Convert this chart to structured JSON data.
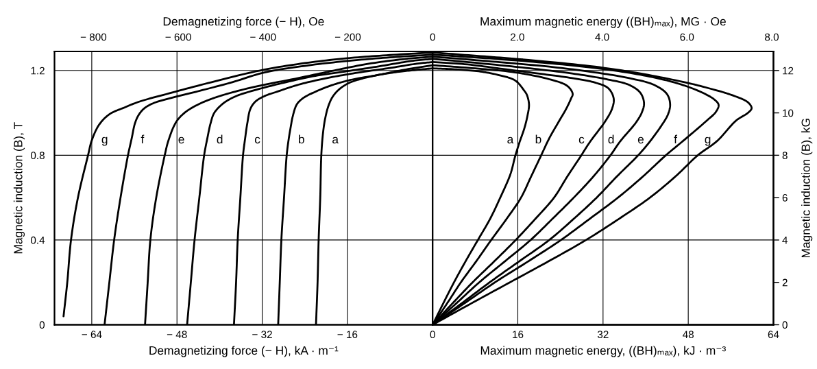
{
  "chart_data": [
    {
      "type": "line",
      "xlabel": "Demagnetizing force (− H), kA · m⁻¹",
      "x2label": "Demagnetizing force (− H), Oe",
      "ylabel": "Magnetic induction (B), T",
      "xlim": [
        -71,
        0
      ],
      "xticks": [
        {
          "value": -64,
          "label": "− 64"
        },
        {
          "value": -48,
          "label": "− 48"
        },
        {
          "value": -32,
          "label": "− 32"
        },
        {
          "value": -16,
          "label": "− 16"
        }
      ],
      "x2lim": [
        -892,
        0
      ],
      "x2ticks": [
        {
          "value": -800,
          "label": "− 800"
        },
        {
          "value": -600,
          "label": "− 600"
        },
        {
          "value": -400,
          "label": "− 400"
        },
        {
          "value": -200,
          "label": "− 200"
        }
      ],
      "ylim": [
        0,
        1.29
      ],
      "yticks": [
        0,
        0.4,
        0.8,
        1.2
      ],
      "grid": true,
      "series": [
        {
          "name": "a",
          "color": "#000000",
          "x": [
            -21.9,
            -21.6,
            -21.4,
            -21.1,
            -20.9,
            -20.6,
            -20.2,
            -19.6,
            -18.8,
            -17.6,
            -15.8,
            -13.5,
            -10,
            -6,
            -3,
            0
          ],
          "values": [
            0,
            0.2,
            0.4,
            0.6,
            0.8,
            0.9,
            0.97,
            1.03,
            1.075,
            1.11,
            1.14,
            1.16,
            1.18,
            1.195,
            1.203,
            1.21
          ]
        },
        {
          "name": "b",
          "color": "#000000",
          "x": [
            -29.0,
            -28.7,
            -28.4,
            -27.9,
            -27.4,
            -27.0,
            -26.6,
            -26.3,
            -25.5,
            -24.3,
            -22.0,
            -19.0,
            -15.5,
            -10,
            -5,
            0
          ],
          "values": [
            0,
            0.2,
            0.4,
            0.6,
            0.8,
            0.88,
            0.94,
            0.98,
            1.04,
            1.07,
            1.1,
            1.13,
            1.155,
            1.18,
            1.205,
            1.225
          ]
        },
        {
          "name": "c",
          "color": "#000000",
          "x": [
            -37.3,
            -36.9,
            -36.6,
            -36.1,
            -35.6,
            -35.2,
            -34.8,
            -34.2,
            -33.2,
            -31.5,
            -29.2,
            -25.2,
            -19.7,
            -14,
            -8,
            -3,
            0
          ],
          "values": [
            0,
            0.2,
            0.4,
            0.6,
            0.8,
            0.88,
            0.95,
            1.02,
            1.055,
            1.08,
            1.1,
            1.133,
            1.165,
            1.19,
            1.212,
            1.232,
            1.24
          ]
        },
        {
          "name": "d",
          "color": "#000000",
          "x": [
            -46.1,
            -45.4,
            -44.7,
            -43.8,
            -42.9,
            -42.3,
            -41.7,
            -41.0,
            -39.3,
            -37.0,
            -33.0,
            -27.5,
            -22.0,
            -16.5,
            -10,
            -4,
            0
          ],
          "values": [
            0,
            0.2,
            0.4,
            0.6,
            0.8,
            0.88,
            0.95,
            1.0,
            1.045,
            1.078,
            1.11,
            1.145,
            1.175,
            1.195,
            1.22,
            1.245,
            1.255
          ]
        },
        {
          "name": "e",
          "color": "#000000",
          "x": [
            -54.0,
            -53.5,
            -53.0,
            -51.9,
            -50.3,
            -49.6,
            -48.2,
            -46.6,
            -44.0,
            -40.5,
            -34.3,
            -25.1,
            -18.5,
            -12,
            -5,
            0
          ],
          "values": [
            0,
            0.2,
            0.4,
            0.6,
            0.8,
            0.87,
            0.955,
            1.0,
            1.04,
            1.075,
            1.118,
            1.165,
            1.2,
            1.232,
            1.255,
            1.265
          ]
        },
        {
          "name": "f",
          "color": "#000000",
          "x": [
            -61.6,
            -60.7,
            -59.8,
            -58.6,
            -57.2,
            -56.5,
            -55.9,
            -55.2,
            -54.2,
            -52.5,
            -48.4,
            -43.6,
            -37.6,
            -31.7,
            -24,
            -16,
            -8,
            0
          ],
          "values": [
            0,
            0.2,
            0.4,
            0.6,
            0.8,
            0.88,
            0.95,
            0.99,
            1.02,
            1.045,
            1.075,
            1.105,
            1.145,
            1.19,
            1.222,
            1.245,
            1.262,
            1.275
          ]
        },
        {
          "name": "g",
          "color": "#000000",
          "x": [
            -69.3,
            -68.6,
            -67.9,
            -66.6,
            -64.7,
            -64.0,
            -62.6,
            -60.6,
            -58.0,
            -55.2,
            -49.5,
            -41.5,
            -32.4,
            -24,
            -16,
            -8,
            0
          ],
          "values": [
            0.04,
            0.2,
            0.4,
            0.6,
            0.8,
            0.87,
            0.945,
            0.995,
            1.024,
            1.052,
            1.092,
            1.145,
            1.2,
            1.235,
            1.258,
            1.273,
            1.285
          ]
        }
      ]
    },
    {
      "type": "line",
      "xlabel": "Maximum magnetic energy, ((BH)ₘₐₓ), kJ · m⁻³",
      "x2label": "Maximum magnetic energy ((BH)ₘₐₓ), MG · Oe",
      "y2label": "Magnetic induction (B), kG",
      "xlim": [
        0,
        64
      ],
      "xticks": [
        0,
        16,
        32,
        48,
        64
      ],
      "x2lim": [
        0,
        8.04
      ],
      "x2ticks": [
        0,
        {
          "value": 2,
          "label": "2.0"
        },
        {
          "value": 4,
          "label": "4.0"
        },
        {
          "value": 6,
          "label": "6.0"
        },
        {
          "value": 8,
          "label": "8.0"
        }
      ],
      "y2lim": [
        0,
        12.9
      ],
      "y2ticks": [
        0,
        2,
        4,
        6,
        8,
        10,
        12
      ],
      "grid": true,
      "series": [
        {
          "name": "a",
          "color": "#000000",
          "axis": "y2",
          "x": [
            0,
            3.8,
            6.2,
            8.5,
            10.8,
            12.7,
            14.6,
            15.5,
            16.3,
            17.2,
            17.8,
            18.1,
            17.7,
            17.2,
            15.5,
            12.5,
            9.0,
            4.5,
            0
          ],
          "values": [
            0,
            1.9,
            3.0,
            4.0,
            5.0,
            6.0,
            7.1,
            7.95,
            8.6,
            9.25,
            9.85,
            10.4,
            10.85,
            11.05,
            11.53,
            11.78,
            11.95,
            12.05,
            12.1
          ]
        },
        {
          "name": "b",
          "color": "#000000",
          "axis": "y2",
          "x": [
            0,
            2.7,
            5.3,
            8.2,
            11.0,
            13.9,
            16.6,
            18.5,
            20.3,
            21.9,
            23.6,
            25.1,
            26.0,
            26.3,
            25.3,
            21.9,
            15.5,
            8,
            0
          ],
          "values": [
            0,
            1.0,
            2.0,
            3.0,
            4.0,
            5.0,
            6.0,
            7.0,
            7.95,
            8.8,
            9.55,
            10.2,
            10.68,
            10.9,
            11.27,
            11.59,
            11.91,
            12.1,
            12.25
          ]
        },
        {
          "name": "c",
          "color": "#000000",
          "axis": "y2",
          "x": [
            0,
            3.7,
            7.5,
            11.6,
            15.6,
            19.3,
            22.8,
            25.3,
            27.8,
            29.6,
            32.4,
            33.7,
            34.0,
            33.0,
            30.5,
            26.2,
            19.8,
            13.3,
            6,
            0
          ],
          "values": [
            0,
            1.0,
            2.0,
            3.0,
            4.0,
            5.0,
            6.0,
            7.0,
            7.95,
            8.65,
            9.6,
            10.2,
            10.68,
            11.16,
            11.43,
            11.64,
            11.86,
            12.07,
            12.3,
            12.4
          ]
        },
        {
          "name": "d",
          "color": "#000000",
          "axis": "y2",
          "x": [
            0,
            4.4,
            8.75,
            13.6,
            18.4,
            22.5,
            26.5,
            30.2,
            33.4,
            35.2,
            38.2,
            39.3,
            39.7,
            39.0,
            36.9,
            32.6,
            26.2,
            17.6,
            9,
            0
          ],
          "values": [
            0,
            1.0,
            2.0,
            3.0,
            4.0,
            5.0,
            6.0,
            7.0,
            8.0,
            8.65,
            9.55,
            10.03,
            10.46,
            10.95,
            11.32,
            11.59,
            11.86,
            12.12,
            12.34,
            12.55
          ]
        },
        {
          "name": "e",
          "color": "#000000",
          "axis": "y2",
          "x": [
            0,
            5.4,
            10.7,
            16.3,
            21.9,
            26.5,
            30.8,
            34.6,
            38.6,
            40.8,
            43.1,
            44.2,
            44.6,
            44.0,
            41.6,
            36.9,
            30.5,
            21.9,
            10,
            0
          ],
          "values": [
            0,
            1.0,
            2.0,
            3.0,
            4.0,
            5.0,
            6.0,
            7.0,
            8.0,
            8.65,
            9.45,
            9.93,
            10.41,
            10.89,
            11.32,
            11.64,
            11.91,
            12.18,
            12.45,
            12.65
          ]
        },
        {
          "name": "f",
          "color": "#000000",
          "axis": "y2",
          "x": [
            0,
            5.9,
            11.7,
            18.0,
            24.1,
            29.5,
            34.8,
            39.5,
            43.8,
            47.0,
            51.5,
            53.2,
            53.7,
            52.8,
            49.8,
            45.5,
            39,
            30.5,
            19.8,
            9,
            0
          ],
          "values": [
            0,
            1.0,
            2.0,
            3.0,
            4.0,
            5.0,
            6.0,
            7.0,
            8.0,
            8.67,
            9.64,
            10.05,
            10.38,
            10.65,
            11.05,
            11.43,
            11.8,
            12.12,
            12.39,
            12.6,
            12.75
          ]
        },
        {
          "name": "g",
          "color": "#000000",
          "axis": "y2",
          "x": [
            0,
            7.2,
            14.5,
            21.8,
            28.8,
            35.0,
            40.8,
            45.6,
            49.8,
            53.4,
            57.0,
            59.2,
            59.9,
            59.2,
            56.2,
            51.9,
            47.6,
            39,
            30.5,
            18,
            9,
            0
          ],
          "values": [
            0,
            1.0,
            2.0,
            3.0,
            4.0,
            5.0,
            6.0,
            7.0,
            8.0,
            8.67,
            9.64,
            10.0,
            10.22,
            10.5,
            10.84,
            11.16,
            11.43,
            11.86,
            12.18,
            12.5,
            12.68,
            12.85
          ]
        }
      ]
    }
  ]
}
